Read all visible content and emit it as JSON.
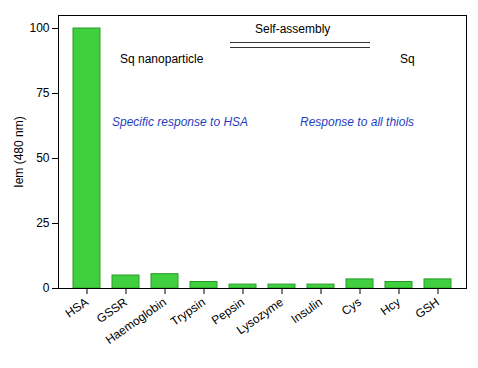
{
  "chart_data": {
    "type": "bar",
    "y_label": "Iem (480 nm)",
    "categories": [
      "HSA",
      "GSSR",
      "Haemoglobin",
      "Trypsin",
      "Pepsin",
      "Lysozyme",
      "Insulin",
      "Cys",
      "Hcy",
      "GSH"
    ],
    "values": [
      100,
      5,
      5.5,
      2.5,
      1.5,
      1.5,
      1.5,
      3.5,
      2.5,
      3.5
    ],
    "color": "#3fcf3f",
    "ylim": [
      0,
      105
    ],
    "yticks": [
      0,
      25,
      50,
      75,
      100
    ],
    "grid": false,
    "annotations": [
      "Sq nanoparticle",
      "Self-assembly",
      "Sq",
      "Specific response to HSA",
      "Response to all thiols"
    ]
  }
}
